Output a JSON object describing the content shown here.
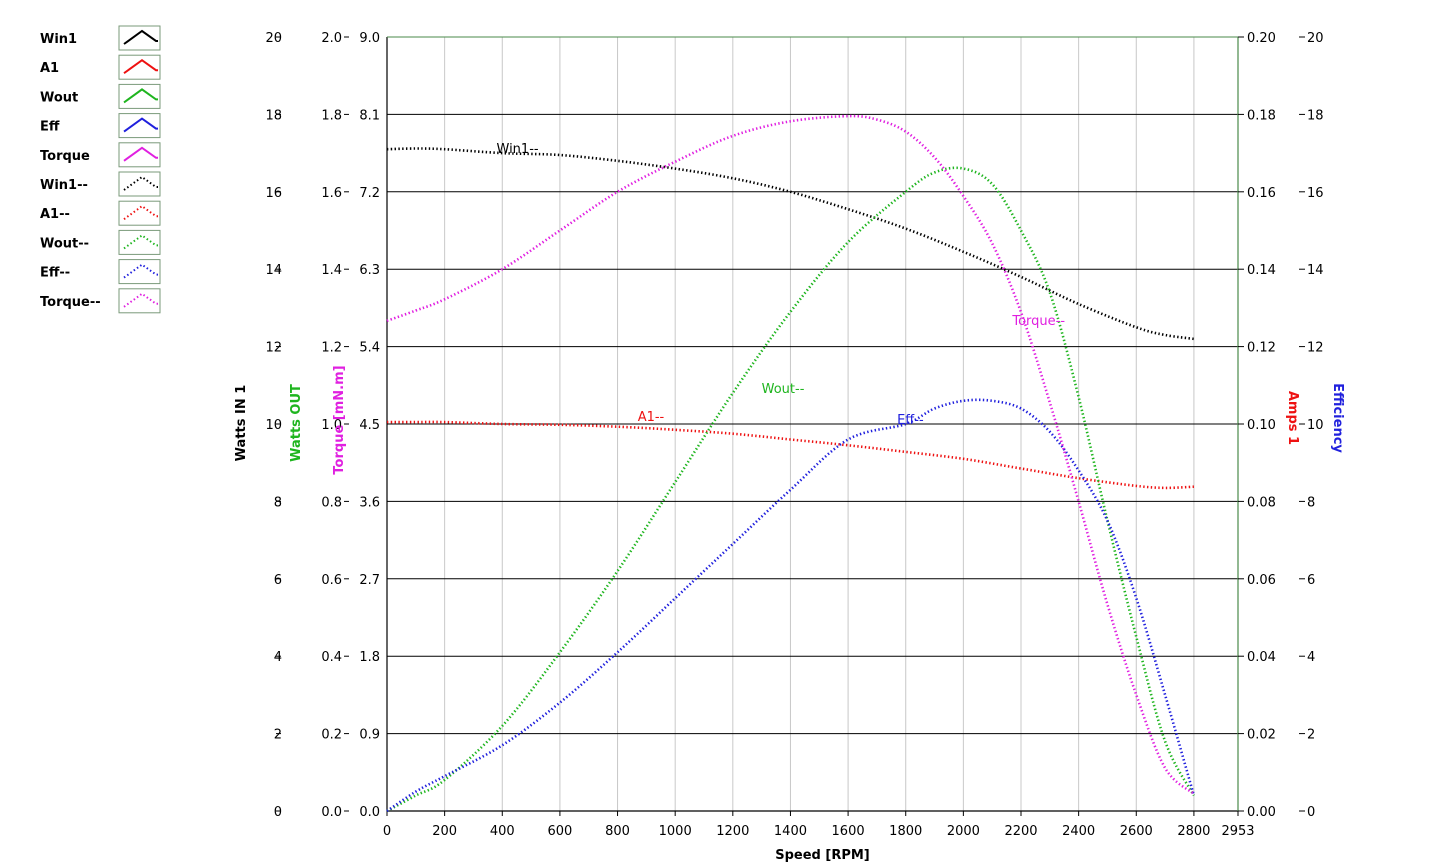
{
  "chart_data": {
    "type": "line",
    "x_axis": {
      "label": "Speed [RPM]",
      "range": [
        0,
        2953
      ],
      "ticks": [
        "0",
        "200",
        "400",
        "600",
        "800",
        "1000",
        "1200",
        "1400",
        "1600",
        "1800",
        "2000",
        "2200",
        "2400",
        "2600",
        "2800",
        "2953"
      ]
    },
    "y_axes": [
      {
        "id": "win",
        "label": "Watts IN 1",
        "color": "#000000",
        "side": "left",
        "range": [
          0,
          20
        ],
        "ticks": [
          "0",
          "2",
          "4",
          "6",
          "8",
          "10",
          "12",
          "14",
          "16",
          "18",
          "20"
        ]
      },
      {
        "id": "wout",
        "label": "Watts OUT",
        "color": "#1fb51f",
        "side": "left",
        "range": [
          0,
          2.0
        ],
        "ticks": [
          "0.0",
          "0.2",
          "0.4",
          "0.6",
          "0.8",
          "1.0",
          "1.2",
          "1.4",
          "1.6",
          "1.8",
          "2.0"
        ]
      },
      {
        "id": "torque",
        "label": "Torque [mN.m]",
        "color": "#e020e0",
        "side": "left",
        "range": [
          0,
          9.0
        ],
        "ticks": [
          "0.0",
          "0.9",
          "1.8",
          "2.7",
          "3.6",
          "4.5",
          "5.4",
          "6.3",
          "7.2",
          "8.1",
          "9.0"
        ]
      },
      {
        "id": "eff",
        "label": "",
        "color": "#1fb51f",
        "side": "right",
        "range": [
          0,
          0.2
        ],
        "ticks": [
          "0.00",
          "0.02",
          "0.04",
          "0.06",
          "0.08",
          "0.10",
          "0.12",
          "0.14",
          "0.16",
          "0.18",
          "0.20"
        ]
      },
      {
        "id": "amps",
        "label": "Amps 1",
        "color": "#ee1111",
        "side": "right",
        "range": [
          0,
          20
        ],
        "ticks": [
          "0",
          "2",
          "4",
          "6",
          "8",
          "10",
          "12",
          "14",
          "16",
          "18",
          "20"
        ]
      },
      {
        "id": "effpct",
        "label": "Efficiency",
        "color": "#2020dd",
        "side": "right",
        "range": [
          0,
          20
        ],
        "ticks": [
          "0",
          "2",
          "4",
          "6",
          "8",
          "10",
          "12",
          "14",
          "16",
          "18",
          "20"
        ]
      }
    ],
    "grid": true,
    "legend": {
      "placement": "left",
      "entries": [
        {
          "name": "Win1",
          "color": "#000000",
          "style": "solid"
        },
        {
          "name": "A1",
          "color": "#ee1111",
          "style": "solid"
        },
        {
          "name": "Wout",
          "color": "#1fb51f",
          "style": "solid"
        },
        {
          "name": "Eff",
          "color": "#2020dd",
          "style": "solid"
        },
        {
          "name": "Torque",
          "color": "#e020e0",
          "style": "solid"
        },
        {
          "name": "Win1--",
          "color": "#000000",
          "style": "dotted"
        },
        {
          "name": "A1--",
          "color": "#ee1111",
          "style": "dotted"
        },
        {
          "name": "Wout--",
          "color": "#1fb51f",
          "style": "dotted"
        },
        {
          "name": "Eff--",
          "color": "#2020dd",
          "style": "dotted"
        },
        {
          "name": "Torque--",
          "color": "#e020e0",
          "style": "dotted"
        }
      ]
    },
    "series": [
      {
        "name": "Win1--",
        "color": "#000000",
        "axis": "win",
        "x": [
          0,
          100,
          200,
          400,
          600,
          800,
          1000,
          1200,
          1400,
          1600,
          1800,
          2000,
          2200,
          2400,
          2600,
          2700,
          2800
        ],
        "y": [
          17.1,
          17.12,
          17.1,
          17.0,
          16.95,
          16.8,
          16.6,
          16.35,
          16.0,
          15.55,
          15.05,
          14.45,
          13.8,
          13.1,
          12.5,
          12.3,
          12.2
        ]
      },
      {
        "name": "A1--",
        "color": "#ee1111",
        "axis": "amps",
        "x": [
          0,
          100,
          200,
          400,
          600,
          800,
          1000,
          1200,
          1400,
          1600,
          1800,
          2000,
          2200,
          2400,
          2600,
          2700,
          2800
        ],
        "y": [
          10.05,
          10.05,
          10.05,
          10.0,
          9.98,
          9.93,
          9.85,
          9.75,
          9.6,
          9.45,
          9.28,
          9.1,
          8.85,
          8.6,
          8.4,
          8.35,
          8.38
        ]
      },
      {
        "name": "Wout--",
        "color": "#1fb51f",
        "axis": "wout",
        "x": [
          0,
          100,
          200,
          400,
          600,
          800,
          1000,
          1200,
          1400,
          1600,
          1800,
          1900,
          2000,
          2100,
          2200,
          2300,
          2400,
          2500,
          2600,
          2700,
          2800
        ],
        "y": [
          0.0,
          0.04,
          0.08,
          0.22,
          0.41,
          0.62,
          0.85,
          1.08,
          1.29,
          1.47,
          1.6,
          1.65,
          1.66,
          1.62,
          1.5,
          1.34,
          1.07,
          0.75,
          0.45,
          0.18,
          0.04
        ]
      },
      {
        "name": "Eff--",
        "color": "#2020dd",
        "axis": "eff",
        "x": [
          0,
          100,
          200,
          400,
          600,
          800,
          1000,
          1200,
          1400,
          1600,
          1800,
          1900,
          2000,
          2100,
          2200,
          2300,
          2400,
          2500,
          2600,
          2700,
          2800
        ],
        "y": [
          0.0,
          0.005,
          0.009,
          0.017,
          0.028,
          0.041,
          0.055,
          0.069,
          0.083,
          0.096,
          0.1,
          0.104,
          0.106,
          0.106,
          0.104,
          0.098,
          0.088,
          0.075,
          0.055,
          0.03,
          0.004
        ]
      },
      {
        "name": "Torque--",
        "color": "#e020e0",
        "axis": "torque",
        "x": [
          0,
          100,
          200,
          400,
          600,
          800,
          1000,
          1200,
          1400,
          1600,
          1700,
          1800,
          1900,
          2000,
          2100,
          2200,
          2300,
          2400,
          2500,
          2600,
          2700,
          2800
        ],
        "y": [
          5.7,
          5.82,
          5.95,
          6.3,
          6.75,
          7.2,
          7.55,
          7.85,
          8.02,
          8.08,
          8.04,
          7.9,
          7.6,
          7.15,
          6.6,
          5.8,
          4.75,
          3.6,
          2.4,
          1.35,
          0.5,
          0.2
        ]
      }
    ],
    "annotations": [
      {
        "text": "Win1--",
        "x": 380,
        "y": 17.0,
        "axis": "win",
        "color": "#000000"
      },
      {
        "text": "A1--",
        "x": 870,
        "y": 10.08,
        "axis": "amps",
        "color": "#ee1111"
      },
      {
        "text": "Wout--",
        "x": 1300,
        "y": 1.08,
        "axis": "wout",
        "color": "#1fb51f"
      },
      {
        "text": "Eff--",
        "x": 1770,
        "y": 0.1,
        "axis": "eff",
        "color": "#2020dd"
      },
      {
        "text": "Torque--",
        "x": 2170,
        "y": 5.65,
        "axis": "torque",
        "color": "#e020e0"
      }
    ]
  }
}
